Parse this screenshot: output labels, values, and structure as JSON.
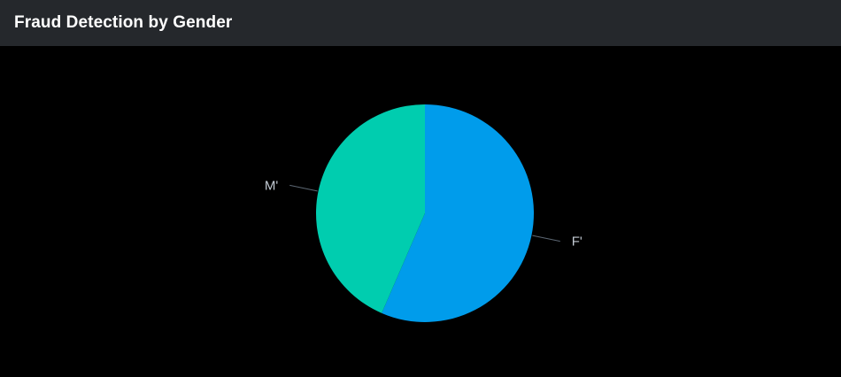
{
  "panel": {
    "title": "Fraud Detection by Gender"
  },
  "chart_data": {
    "type": "pie",
    "title": "Fraud Detection by Gender",
    "categories": [
      "F'",
      "M'"
    ],
    "values": [
      56.5,
      43.5
    ],
    "colors": [
      "#009ceb",
      "#00cdaf"
    ],
    "start": "12 o'clock, clockwise",
    "label_color": "#c3cbd4",
    "leader_color": "#5c6773",
    "background": "#000000"
  }
}
